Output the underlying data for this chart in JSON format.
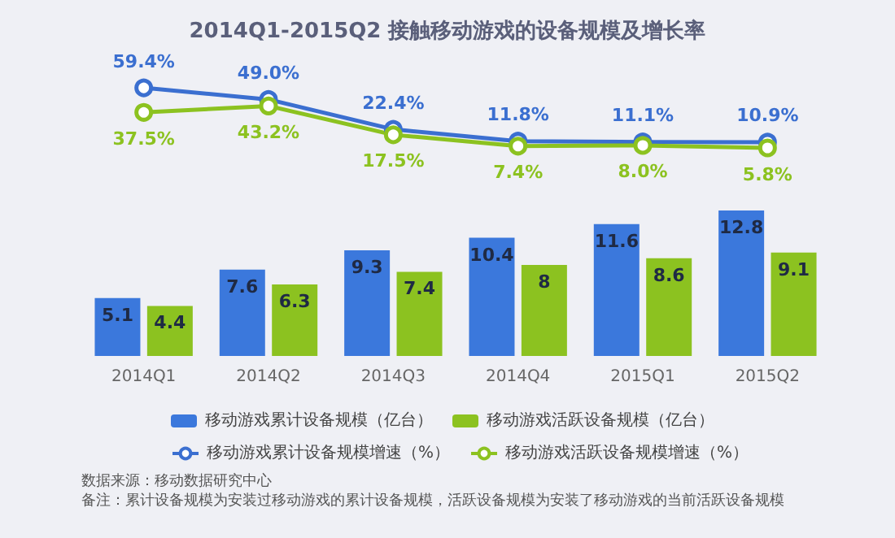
{
  "chart_data": [
    {
      "type": "line",
      "title": "2014Q1-2015Q2 接触移动游戏的设备规模及增长率",
      "categories": [
        null,
        null,
        null,
        null,
        null,
        null
      ],
      "series": [
        {
          "name": "移动游戏累计设备规模增速（%）",
          "color": "#3b6fd0",
          "values": [
            59.4,
            49.0,
            22.4,
            11.8,
            11.1,
            10.9
          ],
          "value_labels": [
            "59.4%",
            "49.0%",
            "22.4%",
            "11.8%",
            "11.1%",
            "10.9%"
          ]
        },
        {
          "name": "移动游戏活跃设备规模增速（%）",
          "color": "#8cc220",
          "values": [
            37.5,
            43.2,
            17.5,
            7.4,
            8.0,
            5.8
          ],
          "value_labels": [
            "37.5%",
            "43.2%",
            "17.5%",
            "7.4%",
            "8.0%",
            "5.8%"
          ]
        }
      ],
      "data_labels": true,
      "marker": "circle",
      "legend": "bottom",
      "tick_labels": false
    },
    {
      "type": "bar",
      "categories": [
        "2014Q1",
        "2014Q2",
        "2014Q3",
        "2014Q4",
        "2015Q1",
        "2015Q2"
      ],
      "series": [
        {
          "name": "移动游戏累计设备规模（亿台）",
          "color": "#3b78dc",
          "values": [
            5.1,
            7.6,
            9.3,
            10.4,
            11.6,
            12.8
          ]
        },
        {
          "name": "移动游戏活跃设备规模（亿台）",
          "color": "#8cc220",
          "values": [
            4.4,
            6.3,
            7.4,
            8.0,
            8.6,
            9.1
          ]
        }
      ],
      "data_labels": true,
      "legend": "bottom",
      "tick_labels": "x",
      "annotations": [
        "数据来源：移动数据研究中心",
        "备注：累计设备规模为安装过移动游戏的累计设备规模，活跃设备规模为安装了移动游戏的当前活跃设备规模"
      ]
    }
  ]
}
